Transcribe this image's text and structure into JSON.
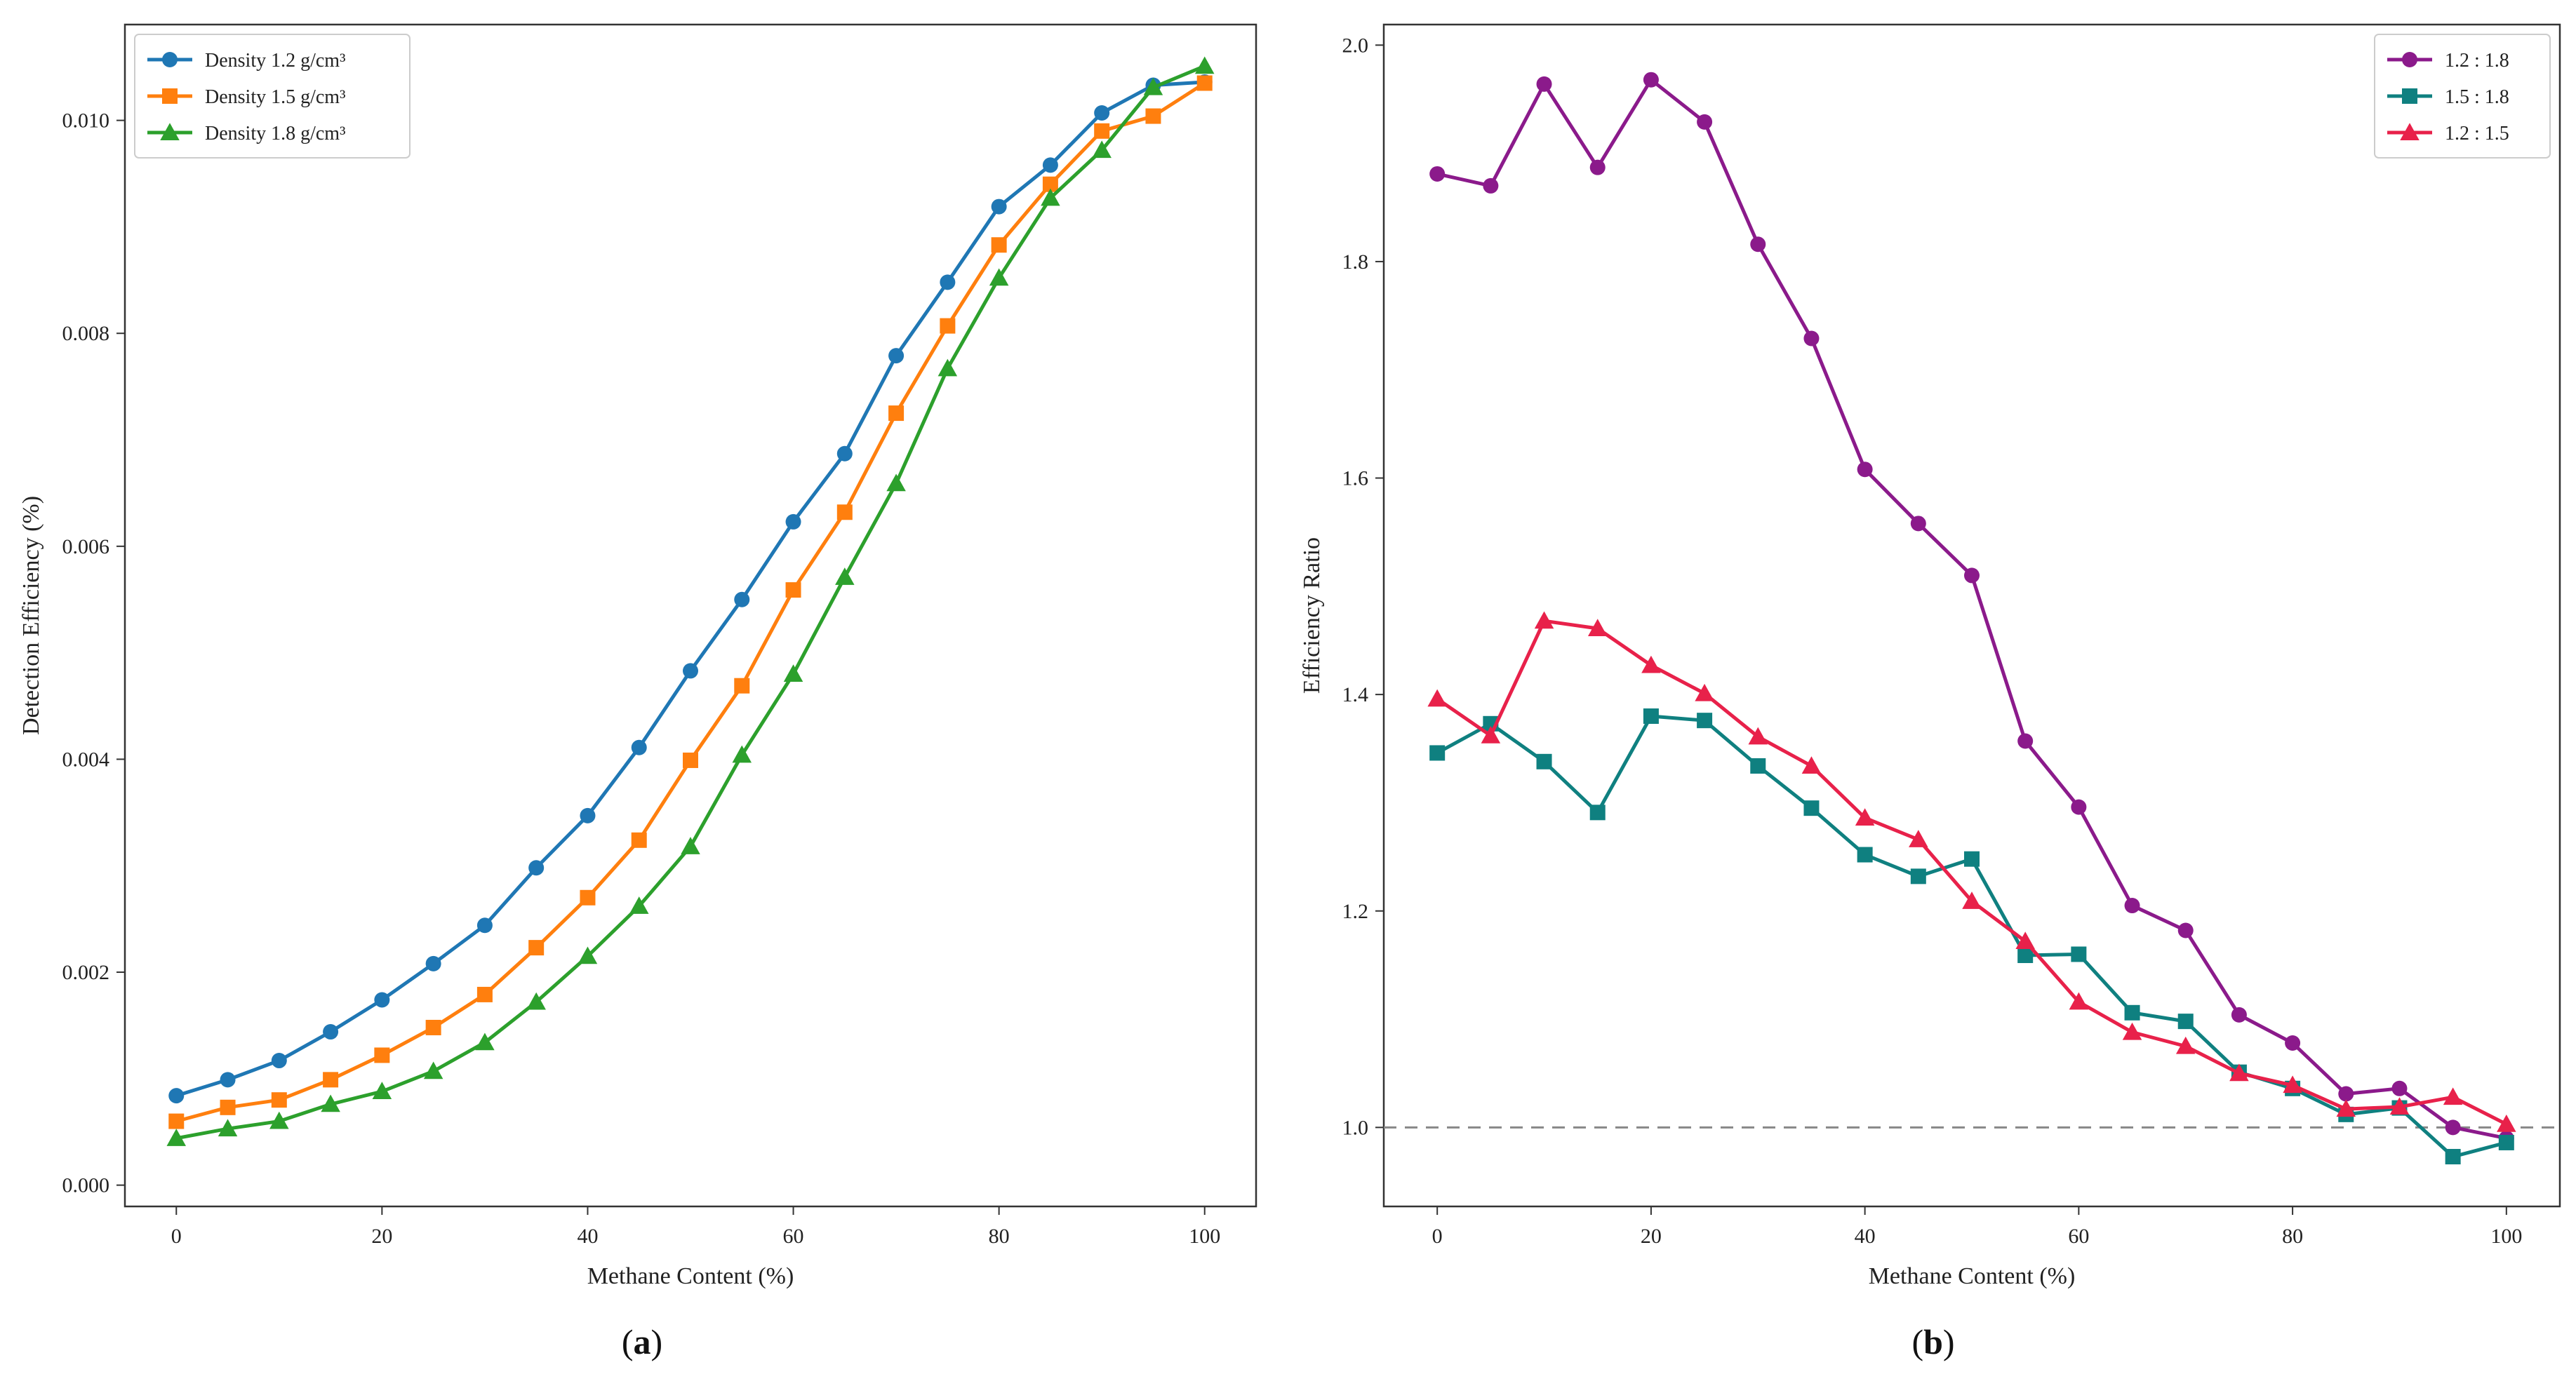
{
  "chart_data": [
    {
      "type": "line",
      "panel": "a",
      "caption": "a",
      "xlabel": "Methane Content (%)",
      "ylabel": "Detection Efficiency (%)",
      "xlim": [
        -5,
        105
      ],
      "ylim": [
        -0.0002,
        0.0109
      ],
      "xticks": [
        0,
        20,
        40,
        60,
        80,
        100
      ],
      "yticks": [
        0.0,
        0.002,
        0.004,
        0.006,
        0.008,
        0.01
      ],
      "ytick_labels": [
        "0.000",
        "0.002",
        "0.004",
        "0.006",
        "0.008",
        "0.010"
      ],
      "xtick_labels": [
        "0",
        "20",
        "40",
        "60",
        "80",
        "100"
      ],
      "legend_position": "top-left",
      "x": [
        0,
        5,
        10,
        15,
        20,
        25,
        30,
        35,
        40,
        45,
        50,
        55,
        60,
        65,
        70,
        75,
        80,
        85,
        90,
        95,
        100
      ],
      "series": [
        {
          "name": "Density 1.2 g/cm³",
          "color": "#1f77b4",
          "marker": "circle",
          "values": [
            0.00084,
            0.00099,
            0.00117,
            0.00144,
            0.00174,
            0.00208,
            0.00244,
            0.00298,
            0.00347,
            0.00411,
            0.00483,
            0.0055,
            0.00623,
            0.00687,
            0.00779,
            0.00848,
            0.00919,
            0.00958,
            0.01007,
            0.01033,
            0.01036
          ]
        },
        {
          "name": "Density 1.5 g/cm³",
          "color": "#ff7f0e",
          "marker": "square",
          "values": [
            0.0006,
            0.00073,
            0.0008,
            0.00099,
            0.00122,
            0.00148,
            0.00179,
            0.00223,
            0.0027,
            0.00324,
            0.00399,
            0.00469,
            0.00559,
            0.00632,
            0.00725,
            0.00807,
            0.00883,
            0.0094,
            0.0099,
            0.01004,
            0.01035
          ]
        },
        {
          "name": "Density 1.8 g/cm³",
          "color": "#2ca02c",
          "marker": "triangle",
          "values": [
            0.00044,
            0.00053,
            0.0006,
            0.00076,
            0.00088,
            0.00107,
            0.00134,
            0.00172,
            0.00215,
            0.00262,
            0.00318,
            0.00404,
            0.0048,
            0.00571,
            0.00659,
            0.00767,
            0.00852,
            0.00927,
            0.00972,
            0.01031,
            0.01051
          ]
        }
      ]
    },
    {
      "type": "line",
      "panel": "b",
      "caption": "b",
      "xlabel": "Methane Content (%)",
      "ylabel": "Efficiency Ratio",
      "xlim": [
        -5,
        105
      ],
      "ylim": [
        0.927,
        2.019
      ],
      "xticks": [
        0,
        20,
        40,
        60,
        80,
        100
      ],
      "yticks": [
        1.0,
        1.2,
        1.4,
        1.6,
        1.8,
        2.0
      ],
      "ytick_labels": [
        "1.0",
        "1.2",
        "1.4",
        "1.6",
        "1.8",
        "2.0"
      ],
      "xtick_labels": [
        "0",
        "20",
        "40",
        "60",
        "80",
        "100"
      ],
      "reference_line": {
        "y": 1.0,
        "style": "dashed",
        "color": "#888888"
      },
      "legend_position": "top-right",
      "x": [
        0,
        5,
        10,
        15,
        20,
        25,
        30,
        35,
        40,
        45,
        50,
        55,
        60,
        65,
        70,
        75,
        80,
        85,
        90,
        95,
        100
      ],
      "series": [
        {
          "name": "1.2 : 1.8",
          "color": "#8b1a8b",
          "marker": "circle",
          "values": [
            1.881,
            1.87,
            1.964,
            1.887,
            1.968,
            1.929,
            1.816,
            1.729,
            1.608,
            1.558,
            1.51,
            1.357,
            1.296,
            1.205,
            1.182,
            1.104,
            1.078,
            1.031,
            1.036,
            1.0,
            0.99
          ]
        },
        {
          "name": "1.5 : 1.8",
          "color": "#0f8080",
          "marker": "square",
          "values": [
            1.346,
            1.373,
            1.338,
            1.291,
            1.38,
            1.376,
            1.334,
            1.295,
            1.252,
            1.232,
            1.248,
            1.159,
            1.16,
            1.106,
            1.098,
            1.051,
            1.036,
            1.012,
            1.018,
            0.973,
            0.986
          ]
        },
        {
          "name": "1.2 : 1.5",
          "color": "#e8214a",
          "marker": "triangle",
          "values": [
            1.396,
            1.362,
            1.468,
            1.461,
            1.427,
            1.401,
            1.361,
            1.334,
            1.286,
            1.266,
            1.209,
            1.172,
            1.116,
            1.088,
            1.075,
            1.05,
            1.039,
            1.017,
            1.019,
            1.028,
            1.003
          ]
        }
      ]
    }
  ]
}
